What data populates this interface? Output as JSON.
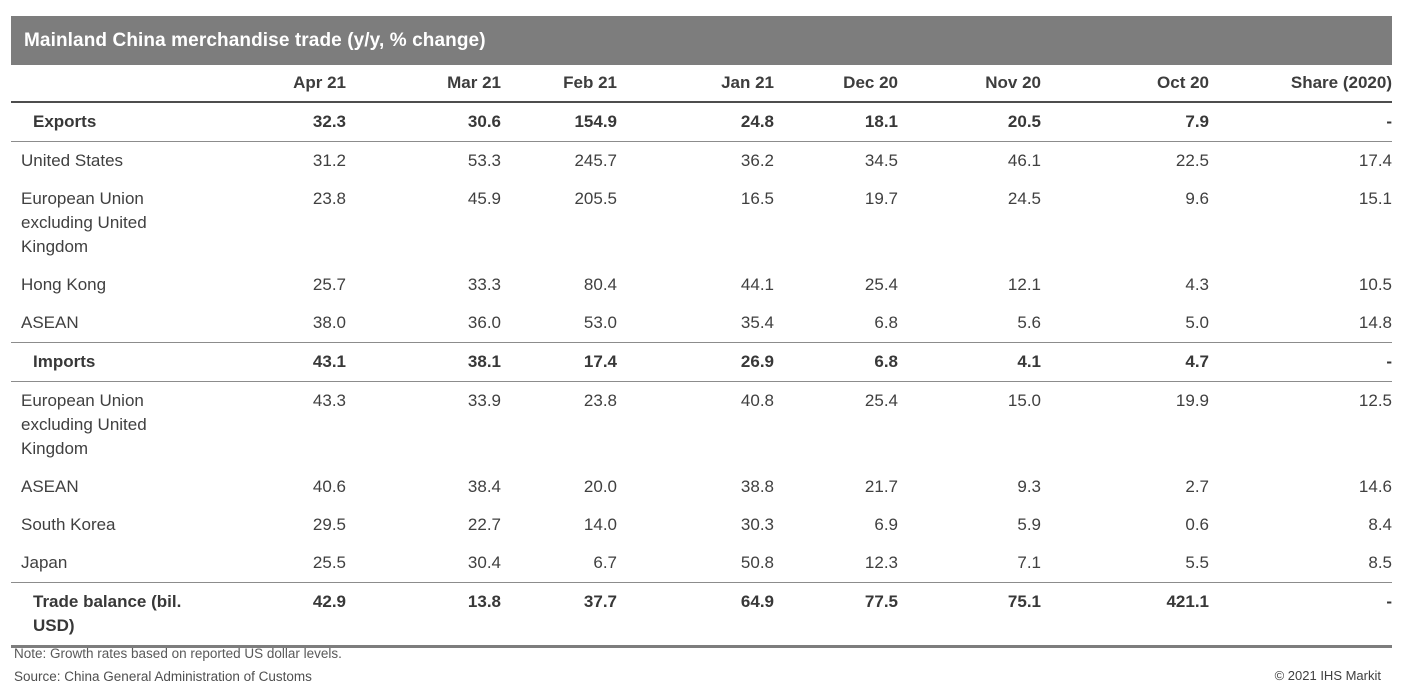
{
  "chart_data": {
    "type": "table",
    "title": "Mainland China merchandise trade (y/y, % change)",
    "columns": [
      "Apr 21",
      "Mar 21",
      "Feb 21",
      "Jan 21",
      "Dec 20",
      "Nov 20",
      "Oct 20",
      "Share (2020)"
    ],
    "rows": [
      {
        "label": "Exports",
        "type": "section",
        "values": [
          "32.3",
          "30.6",
          "154.9",
          "24.8",
          "18.1",
          "20.5",
          "7.9",
          "-"
        ]
      },
      {
        "label": "United States",
        "type": "data",
        "values": [
          "31.2",
          "53.3",
          "245.7",
          "36.2",
          "34.5",
          "46.1",
          "22.5",
          "17.4"
        ]
      },
      {
        "label": "European Union excluding United Kingdom",
        "type": "data",
        "values": [
          "23.8",
          "45.9",
          "205.5",
          "16.5",
          "19.7",
          "24.5",
          "9.6",
          "15.1"
        ]
      },
      {
        "label": "Hong Kong",
        "type": "data",
        "values": [
          "25.7",
          "33.3",
          "80.4",
          "44.1",
          "25.4",
          "12.1",
          "4.3",
          "10.5"
        ]
      },
      {
        "label": "ASEAN",
        "type": "data",
        "values": [
          "38.0",
          "36.0",
          "53.0",
          "35.4",
          "6.8",
          "5.6",
          "5.0",
          "14.8"
        ]
      },
      {
        "label": "Imports",
        "type": "section",
        "values": [
          "43.1",
          "38.1",
          "17.4",
          "26.9",
          "6.8",
          "4.1",
          "4.7",
          "-"
        ]
      },
      {
        "label": "European Union excluding United Kingdom",
        "type": "data",
        "values": [
          "43.3",
          "33.9",
          "23.8",
          "40.8",
          "25.4",
          "15.0",
          "19.9",
          "12.5"
        ]
      },
      {
        "label": "ASEAN",
        "type": "data",
        "values": [
          "40.6",
          "38.4",
          "20.0",
          "38.8",
          "21.7",
          "9.3",
          "2.7",
          "14.6"
        ]
      },
      {
        "label": "South Korea",
        "type": "data",
        "values": [
          "29.5",
          "22.7",
          "14.0",
          "30.3",
          "6.9",
          "5.9",
          "0.6",
          "8.4"
        ]
      },
      {
        "label": "Japan",
        "type": "data",
        "values": [
          "25.5",
          "30.4",
          "6.7",
          "50.8",
          "12.3",
          "7.1",
          "5.5",
          "8.5"
        ]
      },
      {
        "label": "Trade balance (bil. USD)",
        "type": "total",
        "values": [
          "42.9",
          "13.8",
          "37.7",
          "64.9",
          "77.5",
          "75.1",
          "421.1",
          "-"
        ]
      }
    ],
    "note": "Note: Growth rates based on reported US dollar levels.",
    "source": "Source: China General Administration of Customs",
    "copyright": "© 2021 IHS Markit"
  },
  "colors": {
    "title_bar_bg": "#7d7d7d",
    "title_text": "#ffffff",
    "body_text": "#404040",
    "header_rule": "#4d4d4d",
    "section_rule": "#8c8c8c",
    "bottom_rule": "#7d7d7d"
  }
}
